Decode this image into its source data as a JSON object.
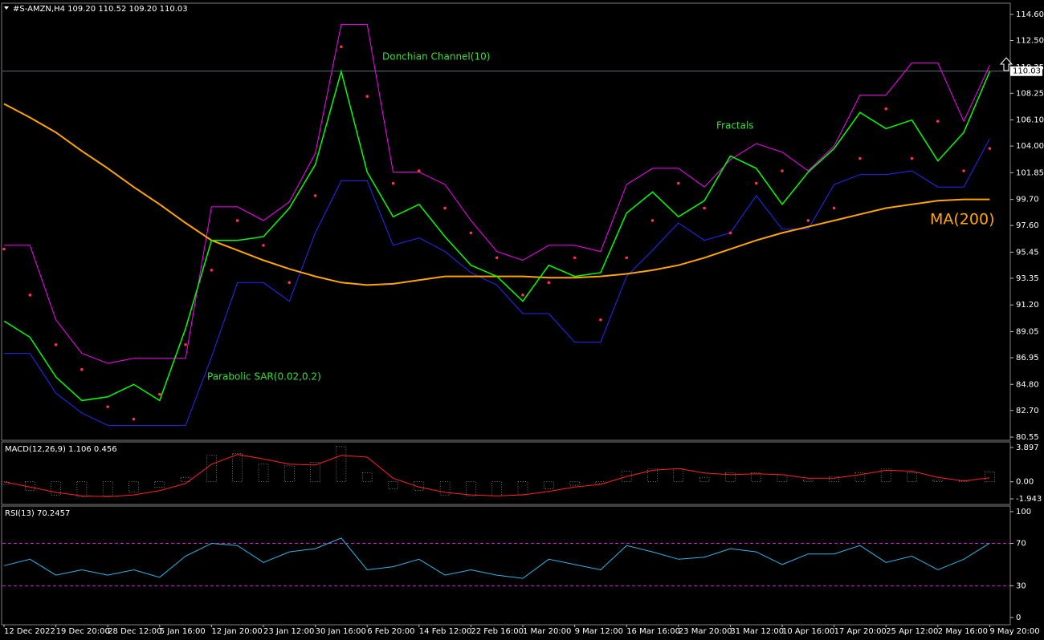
{
  "chart_data": [
    {
      "type": "line",
      "title": "#S-AMZN,H4  109.20 110.52 109.20 110.03",
      "ylim": [
        80.36,
        115.44
      ],
      "yticks": [
        {
          "value": 114.6,
          "label": "114.60"
        },
        {
          "value": 112.5,
          "label": "112.50"
        },
        {
          "value": 110.35,
          "label": "110.35"
        },
        {
          "value": 108.25,
          "label": "108.25"
        },
        {
          "value": 106.1,
          "label": "106.10"
        },
        {
          "value": 104,
          "label": "104.00"
        },
        {
          "value": 101.85,
          "label": "101.85"
        },
        {
          "value": 99.7,
          "label": "99.70"
        },
        {
          "value": 97.6,
          "label": "97.60"
        },
        {
          "value": 95.45,
          "label": "95.45"
        },
        {
          "value": 93.35,
          "label": "93.35"
        },
        {
          "value": 91.2,
          "label": "91.20"
        },
        {
          "value": 89.05,
          "label": "89.05"
        },
        {
          "value": 86.95,
          "label": "86.95"
        },
        {
          "value": 84.8,
          "label": "84.80"
        },
        {
          "value": 82.7,
          "label": "82.70"
        },
        {
          "value": 80.55,
          "label": "80.55"
        }
      ],
      "last": 110.03,
      "annotations": [
        "Donchian Channel(10)",
        "Fractals",
        "Parabolic SAR(0.02,0.2)",
        "MA(200)"
      ],
      "series": [
        {
          "kind": "line",
          "color": "#ff00ff",
          "values": [
            96.0,
            96.0,
            90.0,
            87.3,
            86.5,
            86.9,
            86.9,
            86.9,
            99.1,
            99.1,
            98.0,
            99.5,
            103.4,
            113.8,
            113.8,
            101.9,
            101.9,
            100.9,
            98.0,
            95.5,
            94.8,
            96.0,
            96.0,
            95.5,
            100.9,
            102.2,
            102.2,
            100.7,
            102.9,
            104.2,
            103.5,
            102.0,
            104.0,
            108.1,
            108.1,
            110.7,
            110.7,
            106.0,
            110.5
          ]
        },
        {
          "kind": "line",
          "color": "#2828ff",
          "values": [
            87.3,
            87.3,
            84.1,
            82.5,
            81.5,
            81.5,
            81.5,
            81.5,
            87.0,
            93.0,
            93.0,
            91.5,
            97.0,
            101.2,
            101.2,
            96.0,
            96.6,
            95.5,
            93.8,
            92.8,
            90.5,
            90.5,
            88.2,
            88.2,
            93.5,
            95.6,
            97.8,
            96.4,
            97.0,
            100.0,
            97.3,
            97.3,
            100.9,
            101.7,
            101.7,
            102.0,
            100.7,
            100.7,
            104.6
          ]
        },
        {
          "kind": "line",
          "color": "#ffa500",
          "width": 2,
          "values": [
            107.4,
            106.3,
            105.1,
            103.6,
            102.2,
            100.7,
            99.3,
            97.8,
            96.4,
            95.6,
            94.8,
            94.1,
            93.5,
            93.0,
            92.8,
            92.9,
            93.2,
            93.5,
            93.5,
            93.5,
            93.5,
            93.4,
            93.4,
            93.5,
            93.7,
            94.0,
            94.4,
            95.0,
            95.7,
            96.4,
            97.0,
            97.5,
            98.0,
            98.5,
            99.0,
            99.3,
            99.6,
            99.7,
            99.7
          ]
        },
        {
          "kind": "line",
          "color": "#00ff00",
          "width": 1.5,
          "values": [
            89.9,
            88.6,
            85.4,
            83.5,
            83.8,
            84.8,
            83.5,
            89.3,
            96.4,
            96.4,
            96.7,
            99.0,
            102.5,
            110.0,
            101.9,
            98.3,
            99.3,
            96.7,
            94.4,
            93.5,
            91.5,
            94.4,
            93.5,
            93.8,
            98.6,
            100.3,
            98.3,
            99.6,
            103.2,
            102.2,
            99.3,
            101.9,
            103.8,
            106.7,
            105.4,
            106.1,
            102.8,
            105.1,
            110.0
          ]
        },
        {
          "kind": "dots",
          "color": "#ff3050",
          "values": [
            95.7,
            92,
            88,
            86,
            83,
            82,
            84,
            88,
            94,
            98,
            96,
            93,
            100,
            112,
            108,
            101,
            102,
            99,
            97,
            95,
            92,
            93,
            95,
            90,
            95,
            98,
            101,
            99,
            97,
            101,
            102,
            98,
            99,
            103,
            107,
            103,
            106,
            102,
            103.8
          ]
        }
      ]
    },
    {
      "type": "line",
      "title": "MACD(12,26,9) 1.106 0.456",
      "ylim": [
        -2.49,
        4.44
      ],
      "yticks": [
        3.897,
        {
          "value": 0,
          "label": "0.00"
        },
        -1.943
      ],
      "series": [
        {
          "kind": "histogram",
          "color": "#c0c0c0",
          "values": [
            -0.3,
            -1.0,
            -1.5,
            -1.7,
            -1.6,
            -1.2,
            -0.6,
            0.5,
            3.0,
            3.2,
            2.0,
            1.8,
            2.2,
            4.0,
            1.0,
            -0.8,
            -1.0,
            -1.5,
            -1.6,
            -1.6,
            -1.4,
            -0.8,
            -0.4,
            -0.2,
            1.2,
            1.5,
            1.5,
            0.5,
            1.0,
            1.0,
            0.8,
            0.2,
            0.6,
            1.0,
            1.5,
            1.0,
            0.2,
            0.1,
            1.106
          ]
        },
        {
          "kind": "line",
          "color": "#ff2020",
          "values": [
            0,
            -0.6,
            -1.2,
            -1.6,
            -1.7,
            -1.5,
            -1.0,
            -0.2,
            2.0,
            3.1,
            2.6,
            2.0,
            1.9,
            3.0,
            2.8,
            0.4,
            -0.6,
            -1.2,
            -1.5,
            -1.6,
            -1.5,
            -1.1,
            -0.6,
            -0.3,
            0.6,
            1.3,
            1.5,
            1.0,
            0.8,
            0.9,
            0.8,
            0.4,
            0.4,
            0.8,
            1.3,
            1.2,
            0.5,
            0.1,
            0.456
          ]
        }
      ]
    },
    {
      "type": "line",
      "title": "RSI(13) 70.2457",
      "ylim": [
        -6.1,
        104.5
      ],
      "yticks": [
        100,
        70,
        30,
        0
      ],
      "levels": [
        70,
        30
      ],
      "categories": [
        "12 Dec 2022",
        null,
        "19 Dec 20:00",
        null,
        "28 Dec 12:00",
        null,
        "5 Jan 16:00",
        null,
        "12 Jan 20:00",
        null,
        "23 Jan 12:00",
        null,
        "30 Jan 16:00",
        null,
        "6 Feb 20:00",
        null,
        "14 Feb 12:00",
        null,
        "22 Feb 16:00",
        null,
        "1 Mar 20:00",
        null,
        "9 Mar 12:00",
        null,
        "16 Mar 16:00",
        null,
        "23 Mar 20:00",
        null,
        "31 Mar 12:00",
        null,
        "10 Apr 16:00",
        null,
        "17 Apr 20:00",
        null,
        "25 Apr 12:00",
        null,
        "2 May 16:00",
        null,
        "9 May 20:00"
      ],
      "series": [
        {
          "kind": "line",
          "color": "#32b4e6",
          "values": [
            49,
            55,
            40,
            45,
            40,
            45,
            38,
            58,
            70,
            68,
            52,
            62,
            65,
            75,
            45,
            48,
            55,
            40,
            45,
            40,
            37,
            55,
            50,
            45,
            68,
            62,
            55,
            57,
            65,
            62,
            50,
            60,
            60,
            68,
            52,
            58,
            45,
            55,
            70.2457
          ]
        }
      ]
    }
  ]
}
